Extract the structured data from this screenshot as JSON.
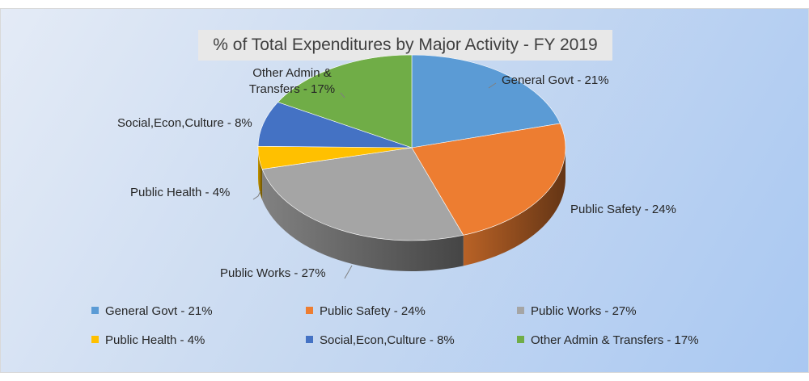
{
  "chart_data": {
    "type": "pie",
    "title": "% of Total Expenditures by Major Activity - FY 2019",
    "slices": [
      {
        "label": "General Govt - 21%",
        "value": 21,
        "color": "#5b9bd5"
      },
      {
        "label": "Public Safety - 24%",
        "value": 24,
        "color": "#ed7d31"
      },
      {
        "label": "Public Works - 27%",
        "value": 27,
        "color": "#a5a5a5"
      },
      {
        "label": "Public Health - 4%",
        "value": 4,
        "color": "#ffc000"
      },
      {
        "label": "Social,Econ,Culture - 8%",
        "value": 8,
        "color": "#4472c4"
      },
      {
        "label": "Other Admin & Transfers - 17%",
        "value": 17,
        "color": "#70ad47"
      }
    ],
    "data_labels": [
      [
        "General Govt - 21%"
      ],
      [
        "Public Safety - 24%"
      ],
      [
        "Public Works - 27%"
      ],
      [
        "Public Health - 4%"
      ],
      [
        "Social,Econ,Culture - 8%"
      ],
      [
        "Other Admin &",
        "Transfers - 17%"
      ]
    ],
    "legend_position": "bottom",
    "style": "3d"
  }
}
